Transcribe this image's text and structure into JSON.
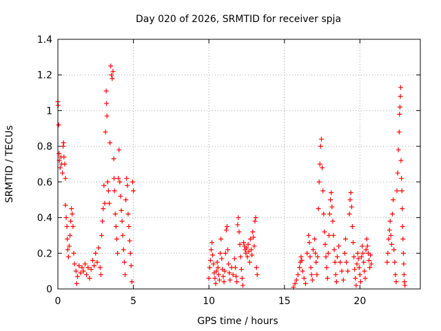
{
  "chart_data": {
    "type": "scatter",
    "title": "Day 020 of 2026, SRMTID for receiver spja",
    "xlabel": "GPS time / hours",
    "ylabel": "SRMTID / TECUs",
    "xlim": [
      0,
      24
    ],
    "ylim": [
      0,
      1.4
    ],
    "xticks": [
      0,
      5,
      10,
      15,
      20
    ],
    "xtick_labels": [
      "0",
      "5",
      "10",
      "15",
      "20"
    ],
    "yticks": [
      0,
      0.2,
      0.4,
      0.6,
      0.8,
      1.0,
      1.2,
      1.4
    ],
    "ytick_labels": [
      "0",
      "0.2",
      "0.4",
      "0.6",
      "0.8",
      "1",
      "1.2",
      "1.4"
    ],
    "grid": true,
    "marker": "plus",
    "series": [
      {
        "name": "SRMTID",
        "color": "#ff0000",
        "points": [
          [
            0.0,
            1.05
          ],
          [
            0.02,
            1.03
          ],
          [
            0.05,
            0.92
          ],
          [
            0.08,
            0.76
          ],
          [
            0.1,
            0.72
          ],
          [
            0.15,
            0.68
          ],
          [
            0.2,
            0.74
          ],
          [
            0.25,
            0.7
          ],
          [
            0.3,
            0.65
          ],
          [
            0.35,
            0.8
          ],
          [
            0.38,
            0.82
          ],
          [
            0.4,
            0.74
          ],
          [
            0.45,
            0.7
          ],
          [
            0.5,
            0.62
          ],
          [
            0.5,
            0.47
          ],
          [
            0.55,
            0.4
          ],
          [
            0.6,
            0.35
          ],
          [
            0.62,
            0.28
          ],
          [
            0.65,
            0.22
          ],
          [
            0.7,
            0.18
          ],
          [
            0.75,
            0.24
          ],
          [
            0.8,
            0.3
          ],
          [
            0.85,
            0.38
          ],
          [
            0.9,
            0.45
          ],
          [
            0.95,
            0.42
          ],
          [
            1.0,
            0.35
          ],
          [
            1.05,
            0.2
          ],
          [
            1.1,
            0.14
          ],
          [
            1.2,
            0.1
          ],
          [
            1.25,
            0.03
          ],
          [
            1.3,
            0.07
          ],
          [
            1.4,
            0.13
          ],
          [
            1.5,
            0.09
          ],
          [
            1.6,
            0.12
          ],
          [
            1.7,
            0.1
          ],
          [
            1.8,
            0.14
          ],
          [
            1.9,
            0.08
          ],
          [
            2.0,
            0.12
          ],
          [
            2.1,
            0.06
          ],
          [
            2.2,
            0.11
          ],
          [
            2.3,
            0.16
          ],
          [
            2.4,
            0.13
          ],
          [
            2.5,
            0.2
          ],
          [
            2.6,
            0.15
          ],
          [
            2.7,
            0.23
          ],
          [
            2.8,
            0.12
          ],
          [
            2.85,
            0.08
          ],
          [
            2.9,
            0.3
          ],
          [
            2.95,
            0.38
          ],
          [
            3.0,
            0.45
          ],
          [
            3.05,
            0.58
          ],
          [
            3.1,
            0.48
          ],
          [
            3.15,
            0.88
          ],
          [
            3.2,
            1.11
          ],
          [
            3.22,
            1.04
          ],
          [
            3.25,
            0.97
          ],
          [
            3.3,
            0.6
          ],
          [
            3.35,
            0.55
          ],
          [
            3.4,
            0.48
          ],
          [
            3.45,
            0.82
          ],
          [
            3.5,
            1.25
          ],
          [
            3.55,
            1.2
          ],
          [
            3.6,
            1.18
          ],
          [
            3.65,
            1.22
          ],
          [
            3.7,
            0.73
          ],
          [
            3.72,
            0.62
          ],
          [
            3.75,
            0.55
          ],
          [
            3.8,
            0.42
          ],
          [
            3.85,
            0.35
          ],
          [
            3.9,
            0.28
          ],
          [
            3.95,
            0.2
          ],
          [
            4.0,
            0.62
          ],
          [
            4.05,
            0.78
          ],
          [
            4.1,
            0.6
          ],
          [
            4.15,
            0.52
          ],
          [
            4.2,
            0.44
          ],
          [
            4.25,
            0.38
          ],
          [
            4.3,
            0.3
          ],
          [
            4.35,
            0.22
          ],
          [
            4.4,
            0.15
          ],
          [
            4.45,
            0.08
          ],
          [
            4.5,
            0.5
          ],
          [
            4.55,
            0.62
          ],
          [
            4.6,
            0.58
          ],
          [
            4.65,
            0.42
          ],
          [
            4.7,
            0.35
          ],
          [
            4.75,
            0.27
          ],
          [
            4.8,
            0.2
          ],
          [
            4.85,
            0.13
          ],
          [
            4.9,
            0.04
          ],
          [
            4.95,
            0.6
          ],
          [
            5.0,
            0.55
          ],
          [
            10.0,
            0.06
          ],
          [
            10.05,
            0.12
          ],
          [
            10.1,
            0.16
          ],
          [
            10.15,
            0.22
          ],
          [
            10.2,
            0.26
          ],
          [
            10.25,
            0.19
          ],
          [
            10.3,
            0.14
          ],
          [
            10.35,
            0.09
          ],
          [
            10.4,
            0.06
          ],
          [
            10.45,
            0.03
          ],
          [
            10.5,
            0.1
          ],
          [
            10.55,
            0.15
          ],
          [
            10.6,
            0.12
          ],
          [
            10.65,
            0.08
          ],
          [
            10.7,
            0.05
          ],
          [
            10.75,
            0.2
          ],
          [
            10.8,
            0.28
          ],
          [
            10.85,
            0.17
          ],
          [
            10.9,
            0.11
          ],
          [
            10.95,
            0.07
          ],
          [
            11.0,
            0.04
          ],
          [
            11.05,
            0.1
          ],
          [
            11.1,
            0.2
          ],
          [
            11.15,
            0.33
          ],
          [
            11.2,
            0.35
          ],
          [
            11.25,
            0.22
          ],
          [
            11.3,
            0.14
          ],
          [
            11.35,
            0.09
          ],
          [
            11.4,
            0.05
          ],
          [
            11.5,
            0.12
          ],
          [
            11.6,
            0.08
          ],
          [
            11.7,
            0.17
          ],
          [
            11.75,
            0.12
          ],
          [
            11.8,
            0.07
          ],
          [
            11.85,
            0.04
          ],
          [
            11.9,
            0.36
          ],
          [
            11.95,
            0.4
          ],
          [
            12.0,
            0.32
          ],
          [
            12.05,
            0.25
          ],
          [
            12.1,
            0.18
          ],
          [
            12.15,
            0.11
          ],
          [
            12.2,
            0.06
          ],
          [
            12.25,
            0.02
          ],
          [
            12.3,
            0.26
          ],
          [
            12.35,
            0.24
          ],
          [
            12.4,
            0.22
          ],
          [
            12.45,
            0.2
          ],
          [
            12.5,
            0.23
          ],
          [
            12.55,
            0.18
          ],
          [
            12.6,
            0.25
          ],
          [
            12.65,
            0.21
          ],
          [
            12.7,
            0.15
          ],
          [
            12.75,
            0.28
          ],
          [
            12.8,
            0.22
          ],
          [
            12.85,
            0.19
          ],
          [
            12.9,
            0.32
          ],
          [
            12.95,
            0.29
          ],
          [
            13.0,
            0.24
          ],
          [
            13.05,
            0.38
          ],
          [
            13.1,
            0.4
          ],
          [
            13.15,
            0.12
          ],
          [
            13.2,
            0.08
          ],
          [
            15.6,
            0.01
          ],
          [
            15.7,
            0.03
          ],
          [
            15.8,
            0.05
          ],
          [
            15.9,
            0.08
          ],
          [
            16.0,
            0.12
          ],
          [
            16.05,
            0.15
          ],
          [
            16.1,
            0.18
          ],
          [
            16.15,
            0.16
          ],
          [
            16.2,
            0.1
          ],
          [
            16.3,
            0.06
          ],
          [
            16.4,
            0.03
          ],
          [
            16.5,
            0.2
          ],
          [
            16.6,
            0.3
          ],
          [
            16.65,
            0.26
          ],
          [
            16.7,
            0.18
          ],
          [
            16.75,
            0.12
          ],
          [
            16.8,
            0.08
          ],
          [
            16.85,
            0.05
          ],
          [
            16.9,
            0.22
          ],
          [
            17.0,
            0.28
          ],
          [
            17.05,
            0.2
          ],
          [
            17.1,
            0.15
          ],
          [
            17.15,
            0.08
          ],
          [
            17.2,
            0.18
          ],
          [
            17.25,
            0.45
          ],
          [
            17.3,
            0.6
          ],
          [
            17.35,
            0.7
          ],
          [
            17.4,
            0.8
          ],
          [
            17.45,
            0.84
          ],
          [
            17.5,
            0.68
          ],
          [
            17.55,
            0.55
          ],
          [
            17.6,
            0.42
          ],
          [
            17.65,
            0.32
          ],
          [
            17.7,
            0.25
          ],
          [
            17.75,
            0.18
          ],
          [
            17.8,
            0.12
          ],
          [
            17.85,
            0.06
          ],
          [
            17.9,
            0.2
          ],
          [
            17.95,
            0.3
          ],
          [
            18.0,
            0.42
          ],
          [
            18.05,
            0.5
          ],
          [
            18.1,
            0.54
          ],
          [
            18.15,
            0.46
          ],
          [
            18.2,
            0.38
          ],
          [
            18.25,
            0.3
          ],
          [
            18.3,
            0.22
          ],
          [
            18.35,
            0.15
          ],
          [
            18.4,
            0.08
          ],
          [
            18.45,
            0.04
          ],
          [
            18.5,
            0.18
          ],
          [
            18.6,
            0.24
          ],
          [
            18.7,
            0.15
          ],
          [
            18.8,
            0.1
          ],
          [
            18.9,
            0.05
          ],
          [
            19.0,
            0.2
          ],
          [
            19.05,
            0.28
          ],
          [
            19.1,
            0.15
          ],
          [
            19.2,
            0.1
          ],
          [
            19.3,
            0.42
          ],
          [
            19.35,
            0.5
          ],
          [
            19.4,
            0.54
          ],
          [
            19.45,
            0.46
          ],
          [
            19.5,
            0.35
          ],
          [
            19.55,
            0.26
          ],
          [
            19.6,
            0.18
          ],
          [
            19.65,
            0.11
          ],
          [
            19.7,
            0.06
          ],
          [
            19.75,
            0.02
          ],
          [
            19.8,
            0.14
          ],
          [
            19.85,
            0.2
          ],
          [
            19.9,
            0.17
          ],
          [
            19.95,
            0.12
          ],
          [
            20.0,
            0.08
          ],
          [
            20.05,
            0.04
          ],
          [
            20.1,
            0.18
          ],
          [
            20.15,
            0.24
          ],
          [
            20.2,
            0.2
          ],
          [
            20.25,
            0.15
          ],
          [
            20.3,
            0.1
          ],
          [
            20.35,
            0.06
          ],
          [
            20.4,
            0.22
          ],
          [
            20.45,
            0.28
          ],
          [
            20.5,
            0.24
          ],
          [
            20.55,
            0.2
          ],
          [
            20.6,
            0.16
          ],
          [
            20.65,
            0.12
          ],
          [
            20.7,
            0.19
          ],
          [
            20.75,
            0.14
          ],
          [
            21.8,
            0.15
          ],
          [
            21.85,
            0.2
          ],
          [
            21.9,
            0.28
          ],
          [
            21.95,
            0.33
          ],
          [
            22.0,
            0.38
          ],
          [
            22.05,
            0.3
          ],
          [
            22.1,
            0.25
          ],
          [
            22.15,
            0.42
          ],
          [
            22.2,
            0.5
          ],
          [
            22.25,
            0.22
          ],
          [
            22.3,
            0.15
          ],
          [
            22.35,
            0.08
          ],
          [
            22.4,
            0.04
          ],
          [
            22.45,
            0.55
          ],
          [
            22.5,
            0.65
          ],
          [
            22.55,
            0.78
          ],
          [
            22.6,
            0.88
          ],
          [
            22.62,
            0.98
          ],
          [
            22.65,
            1.02
          ],
          [
            22.68,
            1.08
          ],
          [
            22.7,
            1.13
          ],
          [
            22.72,
            0.72
          ],
          [
            22.75,
            0.62
          ],
          [
            22.78,
            0.55
          ],
          [
            22.8,
            0.45
          ],
          [
            22.82,
            0.35
          ],
          [
            22.85,
            0.28
          ],
          [
            22.88,
            0.2
          ],
          [
            22.9,
            0.14
          ],
          [
            22.92,
            0.08
          ],
          [
            22.95,
            0.04
          ],
          [
            22.98,
            0.02
          ]
        ]
      }
    ]
  }
}
